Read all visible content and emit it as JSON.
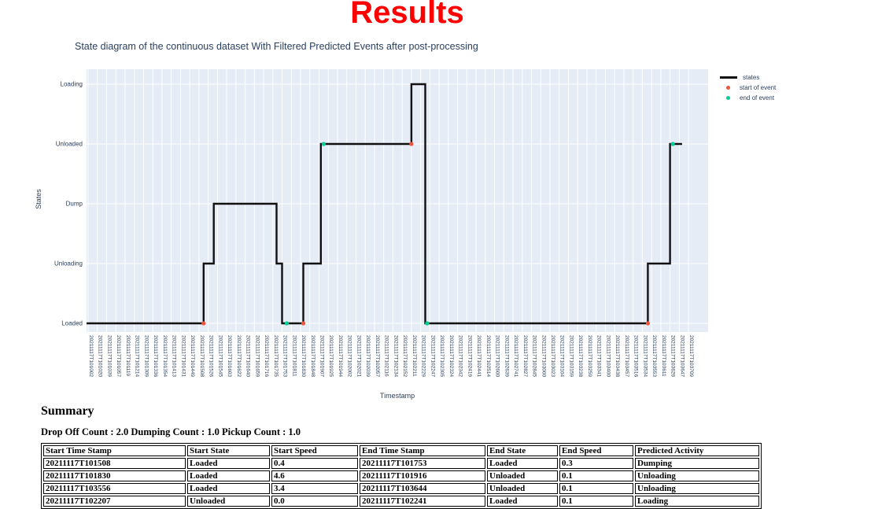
{
  "page_title": "Results",
  "chart_data": {
    "type": "line",
    "subtype": "step-state-diagram",
    "title": "State diagram of the continuous dataset With Filtered Predicted Events after post-processing",
    "xlabel": "Timestamp",
    "ylabel": "States",
    "grid": true,
    "legend_position": "top-right",
    "legend": [
      "states",
      "start of event",
      "end of event"
    ],
    "y_categories": [
      "Loaded",
      "Unloading",
      "Dump",
      "Unloaded",
      "Loading"
    ],
    "x_ticks": [
      "20211117T101002",
      "20211117T101020",
      "20211117T101039",
      "20211117T101057",
      "20211117T101119",
      "20211117T101214",
      "20211117T101309",
      "20211117T101336",
      "20211117T101354",
      "20211117T101413",
      "20211117T101431",
      "20211117T101449",
      "20211117T101508",
      "20211117T101526",
      "20211117T101545",
      "20211117T101603",
      "20211117T101622",
      "20211117T101640",
      "20211117T101659",
      "20211117T101716",
      "20211117T101735",
      "20211117T101753",
      "20211117T101811",
      "20211117T101830",
      "20211117T101848",
      "20211117T101907",
      "20211117T101925",
      "20211117T101944",
      "20211117T102002",
      "20211117T102021",
      "20211117T102039",
      "20211117T102057",
      "20211117T102116",
      "20211117T102134",
      "20211117T102152",
      "20211117T102211",
      "20211117T102229",
      "20211117T102247",
      "20211117T102305",
      "20211117T102324",
      "20211117T102342",
      "20211117T102419",
      "20211117T102441",
      "20211117T102514",
      "20211117T102600",
      "20211117T102639",
      "20211117T102741",
      "20211117T102827",
      "20211117T102845",
      "20211117T103000",
      "20211117T103023",
      "20211117T103104",
      "20211117T103159",
      "20211117T103238",
      "20211117T103259",
      "20211117T103341",
      "20211117T103400",
      "20211117T103438",
      "20211117T103457",
      "20211117T103516",
      "20211117T103534",
      "20211117T103553",
      "20211117T103611",
      "20211117T103629",
      "20211117T103647",
      "20211117T103709"
    ],
    "steps": [
      [
        0,
        "Loaded"
      ],
      [
        12.5,
        "Loaded"
      ],
      [
        12.5,
        "Unloading"
      ],
      [
        13.6,
        "Unloading"
      ],
      [
        13.6,
        "Dump"
      ],
      [
        20.4,
        "Dump"
      ],
      [
        20.4,
        "Unloading"
      ],
      [
        21.0,
        "Unloading"
      ],
      [
        21.0,
        "Loaded"
      ],
      [
        23.3,
        "Loaded"
      ],
      [
        23.3,
        "Unloading"
      ],
      [
        25.2,
        "Unloading"
      ],
      [
        25.2,
        "Unloaded"
      ],
      [
        35.0,
        "Unloaded"
      ],
      [
        35.0,
        "Loading"
      ],
      [
        36.5,
        "Loading"
      ],
      [
        36.5,
        "Loaded"
      ],
      [
        60.6,
        "Loaded"
      ],
      [
        60.6,
        "Unloading"
      ],
      [
        63.0,
        "Unloading"
      ],
      [
        63.0,
        "Unloaded"
      ],
      [
        64.3,
        "Unloaded"
      ]
    ],
    "start_markers": [
      [
        12.5,
        "Loaded"
      ],
      [
        23.3,
        "Loaded"
      ],
      [
        35.0,
        "Unloaded"
      ],
      [
        60.6,
        "Loaded"
      ]
    ],
    "end_markers": [
      [
        21.5,
        "Loaded"
      ],
      [
        25.5,
        "Unloaded"
      ],
      [
        36.7,
        "Loaded"
      ],
      [
        63.3,
        "Unloaded"
      ]
    ],
    "colors": {
      "line": "#111111",
      "start_marker": "#ef553b",
      "end_marker": "#00cc96",
      "plot_bg": "#e5ecf6",
      "grid": "#ffffff",
      "text": "#2a3f5f",
      "title_red": "#ff0000"
    }
  },
  "summary": {
    "heading": "Summary",
    "counts": "Drop Off Count : 2.0 Dumping Count : 1.0 Pickup Count : 1.0"
  },
  "table": {
    "headers": [
      "Start Time Stamp",
      "Start State",
      "Start Speed",
      "End Time Stamp",
      "End State",
      "End Speed",
      "Predicted Activity"
    ],
    "rows": [
      [
        "20211117T101508",
        "Loaded",
        "0.4",
        "20211117T101753",
        "Loaded",
        "0.3",
        "Dumping"
      ],
      [
        "20211117T101830",
        "Loaded",
        "4.6",
        "20211117T101916",
        "Unloaded",
        "0.1",
        "Unloading"
      ],
      [
        "20211117T103556",
        "Loaded",
        "3.4",
        "20211117T103644",
        "Unloaded",
        "0.1",
        "Unloading"
      ],
      [
        "20211117T102207",
        "Unloaded",
        "0.0",
        "20211117T102241",
        "Loaded",
        "0.1",
        "Loading"
      ]
    ]
  }
}
